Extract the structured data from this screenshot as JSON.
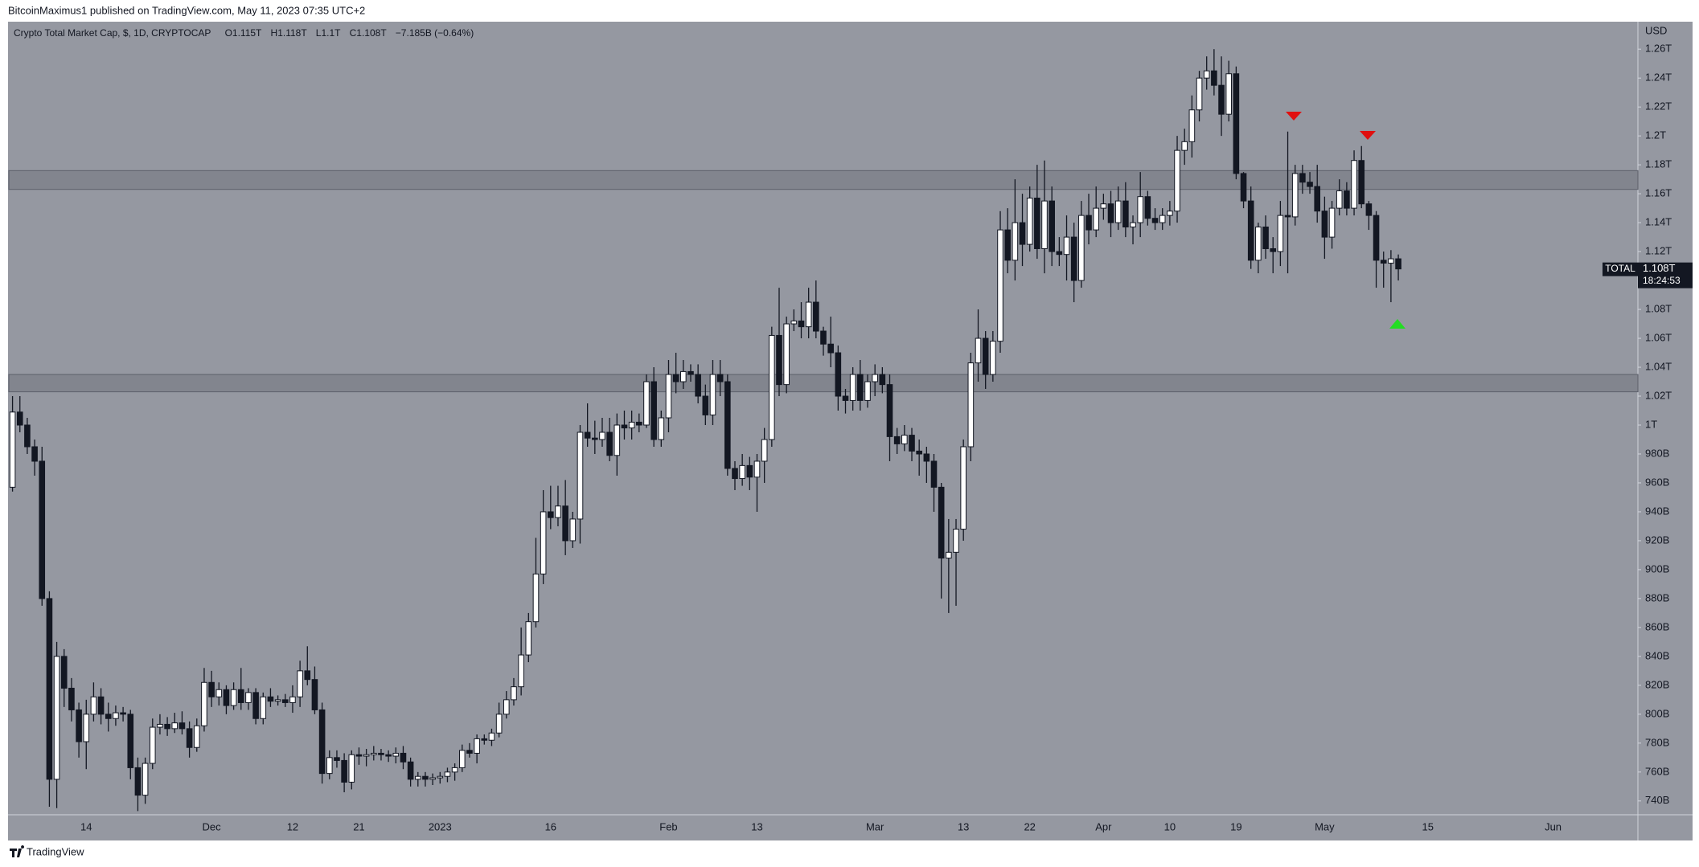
{
  "chart_data": {
    "type": "candlestick",
    "byline": "BitcoinMaximus1 published on TradingView.com, May 11, 2023 07:35 UTC+2",
    "title": "Crypto Total Market Cap, $, 1D, CRYPTOCAP",
    "ohlc_legend": [
      {
        "key": "O",
        "value": "1.115T"
      },
      {
        "key": "H",
        "value": "1.118T"
      },
      {
        "key": "L",
        "value": "1.1T"
      },
      {
        "key": "C",
        "value": "1.108T"
      }
    ],
    "change": "−7.185B (−0.64%)",
    "y_unit": "USD",
    "brand": "TradingView",
    "up_color": "#ffffff",
    "down_color": "#131722",
    "zone_color": "#7c7f88",
    "grid": false,
    "categories": [
      null,
      null,
      null,
      null,
      null,
      null,
      null,
      null,
      null,
      null,
      "14",
      null,
      null,
      null,
      null,
      null,
      null,
      null,
      null,
      null,
      null,
      null,
      null,
      null,
      null,
      null,
      null,
      "Dec",
      null,
      null,
      null,
      null,
      null,
      null,
      null,
      null,
      null,
      null,
      "12",
      null,
      null,
      null,
      null,
      null,
      null,
      null,
      null,
      "21",
      null,
      null,
      null,
      null,
      null,
      null,
      null,
      null,
      null,
      null,
      "2023",
      null,
      null,
      null,
      null,
      null,
      null,
      null,
      null,
      null,
      null,
      null,
      null,
      null,
      null,
      "16",
      null,
      null,
      null,
      null,
      null,
      null,
      null,
      null,
      null,
      null,
      null,
      null,
      null,
      null,
      null,
      "Feb",
      null,
      null,
      null,
      null,
      null,
      null,
      null,
      null,
      null,
      null,
      null,
      "13",
      null,
      null,
      null,
      null,
      null,
      null,
      null,
      null,
      null,
      null,
      null,
      null,
      null,
      null,
      null,
      "Mar",
      null,
      null,
      null,
      null,
      null,
      null,
      null,
      null,
      null,
      null,
      null,
      "13",
      null,
      null,
      null,
      null,
      null,
      null,
      null,
      null,
      "22",
      null,
      null,
      null,
      null,
      null,
      null,
      null,
      null,
      null,
      "Apr",
      null,
      null,
      null,
      null,
      null,
      null,
      null,
      null,
      "10",
      null,
      null,
      null,
      null,
      null,
      null,
      null,
      null,
      "19",
      null,
      null,
      null,
      null,
      null,
      null,
      null,
      null,
      null,
      null,
      null,
      "May",
      null,
      null,
      null,
      null,
      null,
      null,
      null,
      null,
      null,
      null,
      null,
      null,
      null,
      "15",
      null,
      null,
      null,
      null,
      null,
      null,
      null,
      null,
      null,
      null,
      null,
      null,
      null,
      null,
      null,
      null,
      "Jun",
      null,
      null,
      null,
      null,
      null,
      null,
      null,
      null,
      null,
      null,
      null
    ],
    "ohlc": [
      [
        957,
        1020,
        954,
        1009
      ],
      [
        1009,
        1020,
        995,
        1000
      ],
      [
        1000,
        1005,
        980,
        985
      ],
      [
        985,
        990,
        965,
        975
      ],
      [
        975,
        985,
        875,
        880
      ],
      [
        880,
        885,
        736,
        755
      ],
      [
        755,
        850,
        735,
        840
      ],
      [
        840,
        845,
        805,
        818
      ],
      [
        818,
        825,
        795,
        803
      ],
      [
        803,
        808,
        770,
        781
      ],
      [
        781,
        810,
        762,
        800
      ],
      [
        800,
        822,
        795,
        812
      ],
      [
        812,
        818,
        793,
        800
      ],
      [
        800,
        808,
        788,
        797
      ],
      [
        797,
        806,
        792,
        801
      ],
      [
        801,
        805,
        795,
        800
      ],
      [
        800,
        803,
        755,
        763
      ],
      [
        763,
        770,
        733,
        744
      ],
      [
        744,
        770,
        738,
        766
      ],
      [
        766,
        797,
        762,
        791
      ],
      [
        791,
        800,
        786,
        793
      ],
      [
        793,
        798,
        785,
        790
      ],
      [
        790,
        801,
        787,
        794
      ],
      [
        794,
        802,
        786,
        790
      ],
      [
        790,
        795,
        770,
        777
      ],
      [
        777,
        797,
        774,
        792
      ],
      [
        792,
        832,
        788,
        822
      ],
      [
        822,
        830,
        805,
        812
      ],
      [
        812,
        822,
        806,
        817
      ],
      [
        817,
        820,
        800,
        806
      ],
      [
        806,
        822,
        803,
        817
      ],
      [
        817,
        832,
        803,
        808
      ],
      [
        808,
        818,
        803,
        815
      ],
      [
        815,
        818,
        793,
        797
      ],
      [
        797,
        815,
        793,
        812
      ],
      [
        812,
        818,
        805,
        809
      ],
      [
        809,
        813,
        806,
        810
      ],
      [
        810,
        814,
        805,
        808
      ],
      [
        808,
        820,
        801,
        812
      ],
      [
        812,
        837,
        805,
        830
      ],
      [
        830,
        847,
        820,
        824
      ],
      [
        824,
        833,
        800,
        803
      ],
      [
        803,
        808,
        752,
        759
      ],
      [
        759,
        775,
        755,
        770
      ],
      [
        770,
        775,
        763,
        768
      ],
      [
        768,
        773,
        746,
        753
      ],
      [
        753,
        775,
        748,
        772
      ],
      [
        772,
        777,
        765,
        771
      ],
      [
        771,
        776,
        764,
        772
      ],
      [
        772,
        778,
        768,
        773
      ],
      [
        773,
        776,
        768,
        772
      ],
      [
        772,
        775,
        767,
        771
      ],
      [
        771,
        777,
        766,
        773
      ],
      [
        773,
        778,
        762,
        767
      ],
      [
        767,
        770,
        750,
        755
      ],
      [
        755,
        760,
        750,
        757
      ],
      [
        757,
        760,
        750,
        755
      ],
      [
        755,
        759,
        751,
        756
      ],
      [
        756,
        760,
        752,
        757
      ],
      [
        757,
        763,
        753,
        760
      ],
      [
        760,
        766,
        754,
        763
      ],
      [
        763,
        779,
        760,
        775
      ],
      [
        775,
        780,
        770,
        773
      ],
      [
        773,
        786,
        766,
        783
      ],
      [
        783,
        786,
        779,
        782
      ],
      [
        782,
        790,
        778,
        787
      ],
      [
        787,
        808,
        784,
        800
      ],
      [
        800,
        816,
        797,
        810
      ],
      [
        810,
        825,
        806,
        819
      ],
      [
        819,
        860,
        813,
        841
      ],
      [
        841,
        870,
        836,
        864
      ],
      [
        864,
        922,
        860,
        897
      ],
      [
        897,
        955,
        890,
        940
      ],
      [
        940,
        958,
        928,
        936
      ],
      [
        936,
        958,
        930,
        944
      ],
      [
        944,
        962,
        910,
        920
      ],
      [
        920,
        940,
        915,
        935
      ],
      [
        935,
        1000,
        918,
        995
      ],
      [
        995,
        1015,
        985,
        991
      ],
      [
        991,
        1003,
        980,
        990
      ],
      [
        990,
        1005,
        985,
        995
      ],
      [
        995,
        1005,
        975,
        979
      ],
      [
        979,
        1008,
        965,
        1000
      ],
      [
        1000,
        1010,
        990,
        998
      ],
      [
        998,
        1010,
        990,
        1002
      ],
      [
        1002,
        1008,
        995,
        1000
      ],
      [
        1000,
        1035,
        998,
        1030
      ],
      [
        1030,
        1040,
        985,
        990
      ],
      [
        990,
        1010,
        985,
        1005
      ],
      [
        1005,
        1045,
        995,
        1035
      ],
      [
        1035,
        1050,
        1022,
        1030
      ],
      [
        1030,
        1045,
        1025,
        1037
      ],
      [
        1037,
        1042,
        1030,
        1035
      ],
      [
        1035,
        1042,
        1015,
        1020
      ],
      [
        1020,
        1028,
        1000,
        1007
      ],
      [
        1007,
        1045,
        1000,
        1035
      ],
      [
        1035,
        1045,
        1020,
        1030
      ],
      [
        1030,
        1035,
        965,
        970
      ],
      [
        970,
        975,
        955,
        963
      ],
      [
        963,
        980,
        958,
        972
      ],
      [
        972,
        978,
        955,
        964
      ],
      [
        964,
        980,
        940,
        975
      ],
      [
        975,
        998,
        960,
        990
      ],
      [
        990,
        1068,
        985,
        1062
      ],
      [
        1062,
        1095,
        1020,
        1028
      ],
      [
        1028,
        1075,
        1022,
        1070
      ],
      [
        1070,
        1080,
        1065,
        1072
      ],
      [
        1072,
        1085,
        1060,
        1068
      ],
      [
        1068,
        1095,
        1060,
        1085
      ],
      [
        1085,
        1100,
        1060,
        1065
      ],
      [
        1065,
        1068,
        1048,
        1056
      ],
      [
        1056,
        1075,
        1040,
        1050
      ],
      [
        1050,
        1055,
        1010,
        1020
      ],
      [
        1020,
        1025,
        1008,
        1017
      ],
      [
        1017,
        1040,
        1010,
        1035
      ],
      [
        1035,
        1045,
        1010,
        1017
      ],
      [
        1017,
        1035,
        1012,
        1030
      ],
      [
        1030,
        1042,
        1020,
        1035
      ],
      [
        1035,
        1040,
        1022,
        1028
      ],
      [
        1028,
        1035,
        975,
        992
      ],
      [
        992,
        998,
        980,
        987
      ],
      [
        987,
        1000,
        982,
        993
      ],
      [
        993,
        998,
        975,
        982
      ],
      [
        982,
        990,
        965,
        980
      ],
      [
        980,
        985,
        960,
        975
      ],
      [
        975,
        980,
        940,
        957
      ],
      [
        957,
        960,
        880,
        908
      ],
      [
        908,
        935,
        870,
        912
      ],
      [
        912,
        935,
        875,
        928
      ],
      [
        928,
        990,
        920,
        985
      ],
      [
        985,
        1050,
        975,
        1043
      ],
      [
        1043,
        1080,
        1030,
        1060
      ],
      [
        1060,
        1065,
        1025,
        1035
      ],
      [
        1035,
        1065,
        1030,
        1058
      ],
      [
        1058,
        1148,
        1050,
        1135
      ],
      [
        1135,
        1150,
        1105,
        1114
      ],
      [
        1114,
        1170,
        1100,
        1140
      ],
      [
        1140,
        1160,
        1110,
        1125
      ],
      [
        1125,
        1165,
        1120,
        1157
      ],
      [
        1157,
        1180,
        1115,
        1122
      ],
      [
        1122,
        1183,
        1105,
        1155
      ],
      [
        1155,
        1165,
        1110,
        1120
      ],
      [
        1120,
        1130,
        1110,
        1118
      ],
      [
        1118,
        1145,
        1100,
        1130
      ],
      [
        1130,
        1140,
        1085,
        1100
      ],
      [
        1100,
        1155,
        1095,
        1145
      ],
      [
        1145,
        1160,
        1125,
        1135
      ],
      [
        1135,
        1165,
        1130,
        1150
      ],
      [
        1150,
        1160,
        1142,
        1153
      ],
      [
        1153,
        1162,
        1130,
        1140
      ],
      [
        1140,
        1165,
        1135,
        1155
      ],
      [
        1155,
        1168,
        1130,
        1137
      ],
      [
        1137,
        1145,
        1125,
        1140
      ],
      [
        1140,
        1175,
        1130,
        1158
      ],
      [
        1158,
        1162,
        1138,
        1143
      ],
      [
        1143,
        1150,
        1135,
        1140
      ],
      [
        1140,
        1150,
        1135,
        1145
      ],
      [
        1145,
        1155,
        1138,
        1148
      ],
      [
        1148,
        1200,
        1140,
        1190
      ],
      [
        1190,
        1205,
        1180,
        1196
      ],
      [
        1196,
        1228,
        1185,
        1218
      ],
      [
        1218,
        1245,
        1210,
        1240
      ],
      [
        1240,
        1255,
        1232,
        1245
      ],
      [
        1245,
        1260,
        1228,
        1235
      ],
      [
        1235,
        1255,
        1200,
        1215
      ],
      [
        1215,
        1252,
        1210,
        1243
      ],
      [
        1243,
        1248,
        1170,
        1174
      ],
      [
        1174,
        1175,
        1150,
        1155
      ],
      [
        1155,
        1165,
        1108,
        1114
      ],
      [
        1114,
        1140,
        1105,
        1137
      ],
      [
        1137,
        1145,
        1115,
        1122
      ],
      [
        1122,
        1130,
        1105,
        1120
      ],
      [
        1120,
        1155,
        1110,
        1145
      ],
      [
        1145,
        1203,
        1105,
        1144
      ],
      [
        1144,
        1180,
        1138,
        1174
      ],
      [
        1174,
        1180,
        1160,
        1168
      ],
      [
        1168,
        1175,
        1160,
        1165
      ],
      [
        1165,
        1180,
        1140,
        1148
      ],
      [
        1148,
        1158,
        1115,
        1130
      ],
      [
        1130,
        1155,
        1122,
        1150
      ],
      [
        1150,
        1170,
        1145,
        1162
      ],
      [
        1162,
        1168,
        1145,
        1150
      ],
      [
        1150,
        1190,
        1145,
        1183
      ],
      [
        1183,
        1193,
        1150,
        1153
      ],
      [
        1153,
        1155,
        1135,
        1145
      ],
      [
        1145,
        1148,
        1095,
        1114
      ],
      [
        1114,
        1120,
        1095,
        1112
      ],
      [
        1112,
        1121,
        1085,
        1115
      ],
      [
        1115,
        1118,
        1100,
        1108
      ],
      null,
      null,
      null,
      null,
      null,
      null,
      null,
      null,
      null,
      null,
      null,
      null,
      null,
      null,
      null,
      null,
      null,
      null,
      null,
      null,
      null,
      null,
      null,
      null,
      null,
      null,
      null,
      null,
      null,
      null,
      null,
      null
    ],
    "zones": [
      {
        "from": 1163,
        "to": 1176
      },
      {
        "from": 1023,
        "to": 1035
      }
    ],
    "ylim": [
      731,
      1279
    ],
    "yticks": [
      {
        "value": 740,
        "label": "740B"
      },
      {
        "value": 760,
        "label": "760B"
      },
      {
        "value": 780,
        "label": "780B"
      },
      {
        "value": 800,
        "label": "800B"
      },
      {
        "value": 820,
        "label": "820B"
      },
      {
        "value": 840,
        "label": "840B"
      },
      {
        "value": 860,
        "label": "860B"
      },
      {
        "value": 880,
        "label": "880B"
      },
      {
        "value": 900,
        "label": "900B"
      },
      {
        "value": 920,
        "label": "920B"
      },
      {
        "value": 940,
        "label": "940B"
      },
      {
        "value": 960,
        "label": "960B"
      },
      {
        "value": 980,
        "label": "980B"
      },
      {
        "value": 1000,
        "label": "1T"
      },
      {
        "value": 1020,
        "label": "1.02T"
      },
      {
        "value": 1040,
        "label": "1.04T"
      },
      {
        "value": 1060,
        "label": "1.06T"
      },
      {
        "value": 1080,
        "label": "1.08T"
      },
      {
        "value": 1100,
        "label": "1.1T"
      },
      {
        "value": 1120,
        "label": "1.12T"
      },
      {
        "value": 1140,
        "label": "1.14T"
      },
      {
        "value": 1160,
        "label": "1.16T"
      },
      {
        "value": 1180,
        "label": "1.18T"
      },
      {
        "value": 1200,
        "label": "1.2T"
      },
      {
        "value": 1220,
        "label": "1.22T"
      },
      {
        "value": 1240,
        "label": "1.24T"
      },
      {
        "value": 1260,
        "label": "1.26T"
      }
    ],
    "last_price": {
      "name": "TOTAL",
      "value": 1108,
      "label": "1.108T",
      "countdown": "18:24:53"
    }
  }
}
